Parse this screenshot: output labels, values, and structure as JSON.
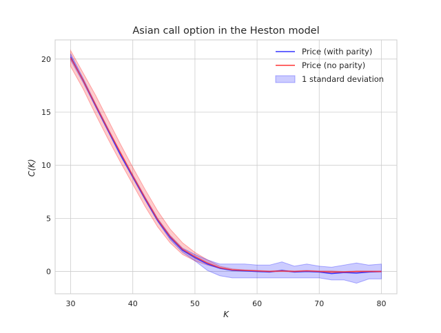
{
  "chart_data": {
    "type": "line",
    "title": "Asian call option in the Heston model",
    "xlabel": "K",
    "ylabel": "C(K)",
    "xlim": [
      27.5,
      82.5
    ],
    "ylim": [
      -2.1,
      21.8
    ],
    "xticks": [
      30,
      40,
      50,
      60,
      70,
      80
    ],
    "yticks": [
      0,
      5,
      10,
      15,
      20
    ],
    "grid": true,
    "legend_position": "top-right",
    "x": [
      30,
      32,
      34,
      36,
      38,
      40,
      42,
      44,
      46,
      48,
      50,
      52,
      54,
      56,
      58,
      60,
      62,
      64,
      66,
      68,
      70,
      72,
      74,
      76,
      78,
      80
    ],
    "series": [
      {
        "name": "Price (with parity)",
        "color": "#3333ff",
        "values": [
          20.2,
          18.0,
          15.6,
          13.3,
          11.0,
          8.9,
          6.8,
          4.8,
          3.2,
          2.0,
          1.3,
          0.7,
          0.3,
          0.1,
          0.05,
          0.0,
          -0.05,
          0.1,
          -0.05,
          0.0,
          -0.05,
          -0.2,
          -0.1,
          -0.15,
          -0.05,
          0.0
        ]
      },
      {
        "name": "Price (no parity)",
        "color": "#ff3333",
        "values": [
          20.1,
          18.0,
          15.7,
          13.4,
          11.2,
          9.0,
          6.9,
          4.9,
          3.3,
          2.1,
          1.4,
          0.8,
          0.35,
          0.15,
          0.1,
          0.05,
          0.0,
          0.05,
          0.0,
          0.05,
          0.0,
          -0.05,
          -0.05,
          0.0,
          0.0,
          0.0
        ]
      }
    ],
    "bands": [
      {
        "name": "1 standard deviation",
        "color": "#0000ff",
        "opacity": 0.2,
        "legend": true,
        "lower": [
          19.9,
          17.8,
          15.5,
          13.2,
          10.9,
          8.8,
          6.7,
          4.7,
          3.0,
          1.8,
          1.0,
          0.1,
          -0.4,
          -0.6,
          -0.6,
          -0.6,
          -0.6,
          -0.6,
          -0.6,
          -0.6,
          -0.6,
          -0.8,
          -0.8,
          -1.1,
          -0.7,
          -0.7
        ],
        "upper": [
          20.5,
          18.2,
          15.8,
          13.5,
          11.2,
          9.1,
          7.0,
          5.0,
          3.4,
          2.2,
          1.6,
          1.1,
          0.7,
          0.7,
          0.7,
          0.6,
          0.6,
          0.9,
          0.5,
          0.7,
          0.5,
          0.4,
          0.6,
          0.8,
          0.6,
          0.7
        ]
      },
      {
        "name": "no parity band",
        "color": "#ff0000",
        "opacity": 0.2,
        "legend": false,
        "lower": [
          19.3,
          17.2,
          14.8,
          12.5,
          10.3,
          8.2,
          6.1,
          4.2,
          2.7,
          1.6,
          1.0,
          0.6,
          0.3,
          0.1,
          0.05,
          0.0,
          -0.05,
          0.0,
          -0.05,
          0.0,
          -0.05,
          -0.1,
          -0.1,
          -0.05,
          -0.05,
          -0.05
        ],
        "upper": [
          20.8,
          18.7,
          16.6,
          14.3,
          12.0,
          9.8,
          7.7,
          5.7,
          4.0,
          2.7,
          1.8,
          1.1,
          0.5,
          0.25,
          0.15,
          0.1,
          0.05,
          0.1,
          0.05,
          0.1,
          0.05,
          0.05,
          0.0,
          0.05,
          0.05,
          0.05
        ]
      }
    ]
  }
}
